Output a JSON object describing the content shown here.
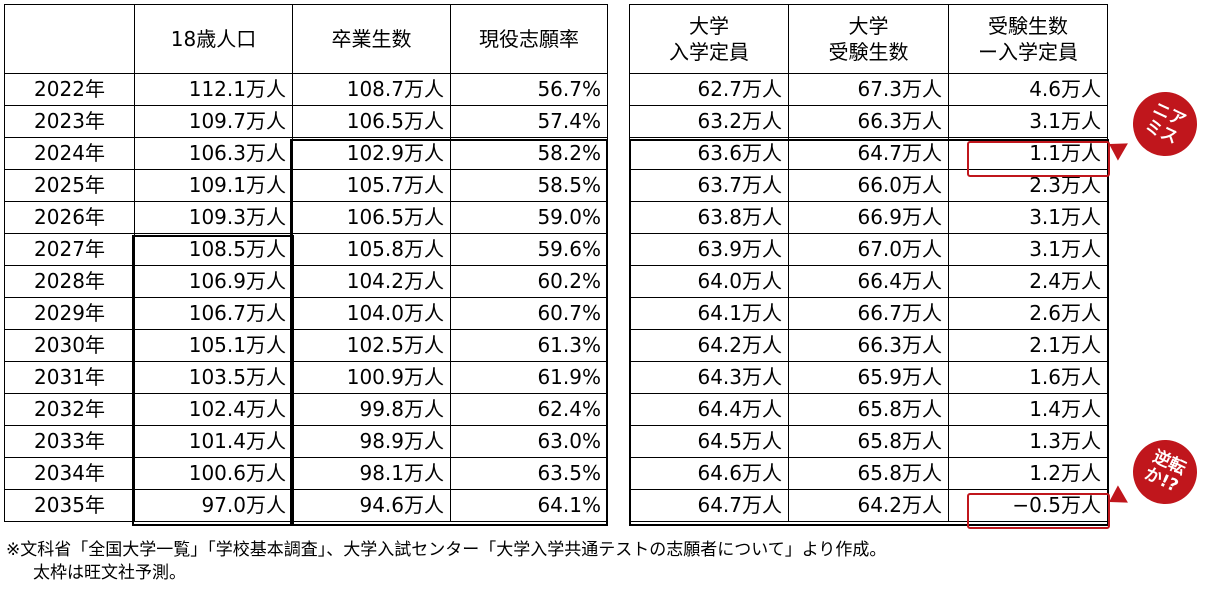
{
  "left_table": {
    "headers": [
      "",
      "18歳人口",
      "卒業生数",
      "現役志願率"
    ],
    "rows": [
      [
        "2022年",
        "112.1万人",
        "108.7万人",
        "56.7%"
      ],
      [
        "2023年",
        "109.7万人",
        "106.5万人",
        "57.4%"
      ],
      [
        "2024年",
        "106.3万人",
        "102.9万人",
        "58.2%"
      ],
      [
        "2025年",
        "109.1万人",
        "105.7万人",
        "58.5%"
      ],
      [
        "2026年",
        "109.3万人",
        "106.5万人",
        "59.0%"
      ],
      [
        "2027年",
        "108.5万人",
        "105.8万人",
        "59.6%"
      ],
      [
        "2028年",
        "106.9万人",
        "104.2万人",
        "60.2%"
      ],
      [
        "2029年",
        "106.7万人",
        "104.0万人",
        "60.7%"
      ],
      [
        "2030年",
        "105.1万人",
        "102.5万人",
        "61.3%"
      ],
      [
        "2031年",
        "103.5万人",
        "100.9万人",
        "61.9%"
      ],
      [
        "2032年",
        "102.4万人",
        "99.8万人",
        "62.4%"
      ],
      [
        "2033年",
        "101.4万人",
        "98.9万人",
        "63.0%"
      ],
      [
        "2034年",
        "100.6万人",
        "98.1万人",
        "63.5%"
      ],
      [
        "2035年",
        "97.0万人",
        "94.6万人",
        "64.1%"
      ]
    ]
  },
  "right_table": {
    "headers": [
      [
        "大学",
        "入学定員"
      ],
      [
        "大学",
        "受験生数"
      ],
      [
        "受験生数",
        "ー入学定員"
      ]
    ],
    "rows": [
      [
        "62.7万人",
        "67.3万人",
        "4.6万人"
      ],
      [
        "63.2万人",
        "66.3万人",
        "3.1万人"
      ],
      [
        "63.6万人",
        "64.7万人",
        "1.1万人"
      ],
      [
        "63.7万人",
        "66.0万人",
        "2.3万人"
      ],
      [
        "63.8万人",
        "66.9万人",
        "3.1万人"
      ],
      [
        "63.9万人",
        "67.0万人",
        "3.1万人"
      ],
      [
        "64.0万人",
        "66.4万人",
        "2.4万人"
      ],
      [
        "64.1万人",
        "66.7万人",
        "2.6万人"
      ],
      [
        "64.2万人",
        "66.3万人",
        "2.1万人"
      ],
      [
        "64.3万人",
        "65.9万人",
        "1.6万人"
      ],
      [
        "64.4万人",
        "65.8万人",
        "1.4万人"
      ],
      [
        "64.5万人",
        "65.8万人",
        "1.3万人"
      ],
      [
        "64.6万人",
        "65.8万人",
        "1.2万人"
      ],
      [
        "64.7万人",
        "64.2万人",
        "−0.5万人"
      ]
    ]
  },
  "badges": {
    "near_miss": [
      "ニア",
      "ミス"
    ],
    "reversal": [
      "逆転",
      "か!?"
    ]
  },
  "colors": {
    "accent_red": "#c0161c",
    "border": "#000000"
  },
  "notes": {
    "line1": "※文科省「全国大学一覧」「学校基本調査」、大学入試センター「大学入学共通テストの志願者について」より作成。",
    "line2": "太枠は旺文社予測。"
  }
}
